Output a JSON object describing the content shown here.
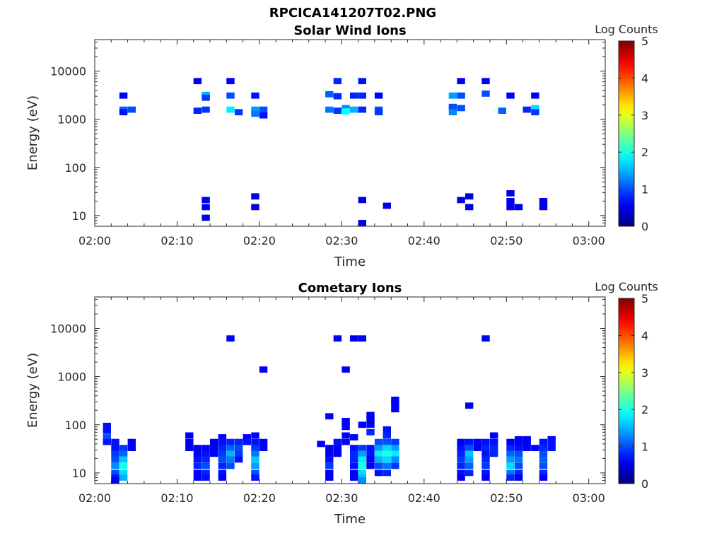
{
  "figure": {
    "title": "RPCICA141207T02.PNG"
  },
  "colorbar": {
    "label": "Log Counts",
    "range": [
      0,
      5
    ],
    "ticks": [
      "0",
      "1",
      "2",
      "3",
      "4",
      "5"
    ],
    "colormap": "jet"
  },
  "chart_data": [
    {
      "type": "heatmap",
      "title": "Solar Wind Ions",
      "xlabel": "Time",
      "ylabel": "Energy (eV)",
      "xlim_minutes": [
        0,
        62
      ],
      "ylim": [
        6,
        45000
      ],
      "y_scale": "log",
      "x_tick_labels": [
        "02:00",
        "02:10",
        "02:20",
        "02:30",
        "02:40",
        "02:50",
        "03:00"
      ],
      "y_tick_values": [
        10,
        100,
        1000,
        10000
      ],
      "y_tick_labels": [
        "10",
        "100",
        "1000",
        "10000"
      ],
      "grid": false,
      "cells": [
        [
          "02:03",
          3100,
          0.6
        ],
        [
          "02:03",
          1580,
          1.1
        ],
        [
          "02:03",
          1400,
          0.7
        ],
        [
          "02:04",
          1580,
          1.0
        ],
        [
          "02:12",
          6200,
          0.6
        ],
        [
          "02:12",
          1500,
          0.8
        ],
        [
          "02:13",
          3200,
          1.5
        ],
        [
          "02:13",
          2800,
          0.9
        ],
        [
          "02:13",
          1580,
          0.9
        ],
        [
          "02:13",
          21,
          0.5
        ],
        [
          "02:13",
          15,
          0.5
        ],
        [
          "02:13",
          9,
          0.5
        ],
        [
          "02:16",
          6200,
          0.6
        ],
        [
          "02:16",
          3100,
          1.0
        ],
        [
          "02:16",
          1580,
          1.8
        ],
        [
          "02:17",
          1400,
          0.9
        ],
        [
          "02:19",
          3100,
          0.7
        ],
        [
          "02:19",
          1580,
          1.4
        ],
        [
          "02:19",
          1300,
          1.2
        ],
        [
          "02:20",
          1580,
          1.0
        ],
        [
          "02:20",
          1200,
          0.7
        ],
        [
          "02:19",
          25,
          0.5
        ],
        [
          "02:19",
          15,
          0.5
        ],
        [
          "02:28",
          3300,
          1.1
        ],
        [
          "02:28",
          1580,
          1.2
        ],
        [
          "02:29",
          6200,
          0.8
        ],
        [
          "02:29",
          3000,
          0.8
        ],
        [
          "02:29",
          1500,
          0.9
        ],
        [
          "02:30",
          1700,
          1.3
        ],
        [
          "02:30",
          1450,
          1.9
        ],
        [
          "02:31",
          3100,
          0.8
        ],
        [
          "02:31",
          1580,
          1.5
        ],
        [
          "02:32",
          6200,
          0.7
        ],
        [
          "02:32",
          3100,
          0.8
        ],
        [
          "02:32",
          1580,
          0.8
        ],
        [
          "02:32",
          21,
          0.5
        ],
        [
          "02:32",
          7,
          0.5
        ],
        [
          "02:34",
          3100,
          0.6
        ],
        [
          "02:34",
          1580,
          1.0
        ],
        [
          "02:34",
          1400,
          0.9
        ],
        [
          "02:35",
          16,
          0.5
        ],
        [
          "02:43",
          3100,
          1.4
        ],
        [
          "02:43",
          1800,
          1.0
        ],
        [
          "02:43",
          1400,
          1.3
        ],
        [
          "02:44",
          6200,
          0.6
        ],
        [
          "02:44",
          3100,
          1.0
        ],
        [
          "02:44",
          1700,
          1.0
        ],
        [
          "02:44",
          21,
          0.5
        ],
        [
          "02:45",
          25,
          0.5
        ],
        [
          "02:45",
          15,
          0.5
        ],
        [
          "02:47",
          6200,
          0.6
        ],
        [
          "02:47",
          3400,
          1.0
        ],
        [
          "02:49",
          1500,
          1.1
        ],
        [
          "02:50",
          3100,
          0.6
        ],
        [
          "02:50",
          29,
          0.5
        ],
        [
          "02:50",
          20,
          0.5
        ],
        [
          "02:50",
          15,
          0.5
        ],
        [
          "02:51",
          15,
          0.5
        ],
        [
          "02:52",
          1580,
          0.8
        ],
        [
          "02:53",
          3100,
          0.6
        ],
        [
          "02:53",
          1700,
          1.7
        ],
        [
          "02:53",
          1400,
          0.9
        ],
        [
          "02:54",
          20,
          0.5
        ],
        [
          "02:54",
          15,
          0.5
        ]
      ]
    },
    {
      "type": "heatmap",
      "title": "Cometary Ions",
      "xlabel": "Time",
      "ylabel": "Energy (eV)",
      "xlim_minutes": [
        0,
        62
      ],
      "ylim": [
        6,
        45000
      ],
      "y_scale": "log",
      "x_tick_labels": [
        "02:00",
        "02:10",
        "02:20",
        "02:30",
        "02:40",
        "02:50",
        "03:00"
      ],
      "y_tick_values": [
        10,
        100,
        1000,
        10000
      ],
      "y_tick_labels": [
        "10",
        "100",
        "1000",
        "10000"
      ],
      "grid": false,
      "cells": [
        [
          "02:01",
          95,
          0.7
        ],
        [
          "02:01",
          75,
          0.7
        ],
        [
          "02:01",
          55,
          1.0
        ],
        [
          "02:01",
          44,
          0.7
        ],
        [
          "02:02",
          44,
          0.7
        ],
        [
          "02:02",
          33,
          0.7
        ],
        [
          "02:02",
          25,
          0.9
        ],
        [
          "02:02",
          19,
          1.0
        ],
        [
          "02:02",
          14,
          1.3
        ],
        [
          "02:02",
          10,
          1.0
        ],
        [
          "02:02",
          8,
          0.7
        ],
        [
          "02:02",
          7,
          0.5
        ],
        [
          "02:03",
          33,
          0.9
        ],
        [
          "02:03",
          25,
          1.1
        ],
        [
          "02:03",
          19,
          1.6
        ],
        [
          "02:03",
          14,
          2.0
        ],
        [
          "02:03",
          10,
          1.7
        ],
        [
          "02:03",
          8,
          1.5
        ],
        [
          "02:04",
          44,
          0.6
        ],
        [
          "02:04",
          33,
          0.6
        ],
        [
          "02:11",
          60,
          0.6
        ],
        [
          "02:11",
          44,
          0.6
        ],
        [
          "02:11",
          33,
          0.6
        ],
        [
          "02:12",
          33,
          0.6
        ],
        [
          "02:12",
          25,
          0.6
        ],
        [
          "02:12",
          19,
          0.7
        ],
        [
          "02:12",
          14,
          0.8
        ],
        [
          "02:12",
          10,
          0.6
        ],
        [
          "02:12",
          8,
          0.6
        ],
        [
          "02:13",
          33,
          0.6
        ],
        [
          "02:13",
          25,
          0.7
        ],
        [
          "02:13",
          19,
          0.8
        ],
        [
          "02:13",
          14,
          1.0
        ],
        [
          "02:13",
          10,
          0.8
        ],
        [
          "02:13",
          8,
          0.7
        ],
        [
          "02:14",
          44,
          0.5
        ],
        [
          "02:14",
          33,
          0.6
        ],
        [
          "02:14",
          25,
          0.6
        ],
        [
          "02:15",
          55,
          0.6
        ],
        [
          "02:15",
          44,
          0.7
        ],
        [
          "02:15",
          33,
          0.8
        ],
        [
          "02:15",
          25,
          0.9
        ],
        [
          "02:15",
          19,
          1.0
        ],
        [
          "02:15",
          14,
          0.8
        ],
        [
          "02:15",
          10,
          0.7
        ],
        [
          "02:15",
          8,
          0.6
        ],
        [
          "02:16",
          6200,
          0.6
        ],
        [
          "02:16",
          44,
          0.8
        ],
        [
          "02:16",
          33,
          1.1
        ],
        [
          "02:16",
          25,
          1.5
        ],
        [
          "02:16",
          19,
          1.2
        ],
        [
          "02:16",
          14,
          1.0
        ],
        [
          "02:17",
          44,
          0.8
        ],
        [
          "02:17",
          33,
          1.0
        ],
        [
          "02:17",
          25,
          0.9
        ],
        [
          "02:17",
          19,
          0.7
        ],
        [
          "02:18",
          55,
          0.6
        ],
        [
          "02:18",
          44,
          0.7
        ],
        [
          "02:19",
          60,
          0.6
        ],
        [
          "02:19",
          44,
          0.7
        ],
        [
          "02:19",
          33,
          0.9
        ],
        [
          "02:19",
          25,
          1.2
        ],
        [
          "02:19",
          19,
          1.6
        ],
        [
          "02:19",
          14,
          1.4
        ],
        [
          "02:19",
          10,
          1.0
        ],
        [
          "02:19",
          8,
          0.7
        ],
        [
          "02:20",
          1400,
          0.6
        ],
        [
          "02:20",
          44,
          0.6
        ],
        [
          "02:20",
          33,
          0.6
        ],
        [
          "02:27",
          40,
          0.6
        ],
        [
          "02:28",
          150,
          0.6
        ],
        [
          "02:28",
          33,
          0.6
        ],
        [
          "02:28",
          25,
          0.6
        ],
        [
          "02:28",
          19,
          0.7
        ],
        [
          "02:28",
          14,
          0.9
        ],
        [
          "02:28",
          10,
          0.6
        ],
        [
          "02:28",
          8,
          0.6
        ],
        [
          "02:29",
          6200,
          0.6
        ],
        [
          "02:29",
          44,
          0.7
        ],
        [
          "02:29",
          33,
          0.6
        ],
        [
          "02:29",
          25,
          0.6
        ],
        [
          "02:30",
          120,
          0.6
        ],
        [
          "02:30",
          90,
          0.6
        ],
        [
          "02:30",
          60,
          0.6
        ],
        [
          "02:30",
          44,
          0.6
        ],
        [
          "02:30",
          1400,
          0.6
        ],
        [
          "02:31",
          6200,
          0.6
        ],
        [
          "02:31",
          55,
          0.6
        ],
        [
          "02:31",
          33,
          0.7
        ],
        [
          "02:31",
          25,
          0.8
        ],
        [
          "02:31",
          19,
          0.8
        ],
        [
          "02:31",
          14,
          0.7
        ],
        [
          "02:31",
          10,
          0.6
        ],
        [
          "02:31",
          8,
          0.6
        ],
        [
          "02:32",
          6200,
          0.6
        ],
        [
          "02:32",
          100,
          0.6
        ],
        [
          "02:32",
          33,
          0.9
        ],
        [
          "02:32",
          25,
          1.4
        ],
        [
          "02:32",
          19,
          1.8
        ],
        [
          "02:32",
          14,
          2.0
        ],
        [
          "02:32",
          10,
          1.7
        ],
        [
          "02:32",
          8,
          1.6
        ],
        [
          "02:32",
          7,
          1.3
        ],
        [
          "02:33",
          160,
          0.6
        ],
        [
          "02:33",
          130,
          0.6
        ],
        [
          "02:33",
          100,
          0.6
        ],
        [
          "02:33",
          70,
          0.8
        ],
        [
          "02:33",
          33,
          0.7
        ],
        [
          "02:33",
          25,
          0.7
        ],
        [
          "02:33",
          19,
          0.6
        ],
        [
          "02:33",
          14,
          0.6
        ],
        [
          "02:34",
          44,
          1.0
        ],
        [
          "02:34",
          33,
          1.4
        ],
        [
          "02:34",
          25,
          1.8
        ],
        [
          "02:34",
          19,
          1.5
        ],
        [
          "02:34",
          14,
          1.0
        ],
        [
          "02:34",
          10,
          0.7
        ],
        [
          "02:35",
          80,
          0.7
        ],
        [
          "02:35",
          60,
          0.8
        ],
        [
          "02:35",
          44,
          1.0
        ],
        [
          "02:35",
          33,
          1.7
        ],
        [
          "02:35",
          25,
          2.0
        ],
        [
          "02:35",
          19,
          1.7
        ],
        [
          "02:35",
          14,
          1.2
        ],
        [
          "02:35",
          10,
          0.8
        ],
        [
          "02:36",
          330,
          0.6
        ],
        [
          "02:36",
          280,
          0.6
        ],
        [
          "02:36",
          210,
          0.6
        ],
        [
          "02:36",
          44,
          0.9
        ],
        [
          "02:36",
          33,
          1.4
        ],
        [
          "02:36",
          25,
          1.8
        ],
        [
          "02:36",
          19,
          1.3
        ],
        [
          "02:36",
          14,
          0.9
        ],
        [
          "02:44",
          44,
          0.6
        ],
        [
          "02:44",
          33,
          0.7
        ],
        [
          "02:44",
          25,
          0.8
        ],
        [
          "02:44",
          19,
          0.9
        ],
        [
          "02:44",
          14,
          0.8
        ],
        [
          "02:44",
          10,
          0.7
        ],
        [
          "02:44",
          8,
          0.6
        ],
        [
          "02:45",
          250,
          0.6
        ],
        [
          "02:45",
          44,
          0.7
        ],
        [
          "02:45",
          33,
          1.0
        ],
        [
          "02:45",
          25,
          1.6
        ],
        [
          "02:45",
          19,
          1.4
        ],
        [
          "02:45",
          14,
          1.1
        ],
        [
          "02:45",
          10,
          0.8
        ],
        [
          "02:46",
          44,
          0.6
        ],
        [
          "02:46",
          33,
          0.6
        ],
        [
          "02:47",
          6200,
          0.6
        ],
        [
          "02:47",
          44,
          0.7
        ],
        [
          "02:47",
          33,
          0.8
        ],
        [
          "02:47",
          25,
          0.7
        ],
        [
          "02:47",
          19,
          0.8
        ],
        [
          "02:47",
          14,
          0.9
        ],
        [
          "02:47",
          10,
          0.7
        ],
        [
          "02:47",
          8,
          0.6
        ],
        [
          "02:48",
          60,
          0.6
        ],
        [
          "02:48",
          44,
          0.7
        ],
        [
          "02:48",
          33,
          0.8
        ],
        [
          "02:48",
          25,
          0.8
        ],
        [
          "02:50",
          44,
          0.6
        ],
        [
          "02:50",
          33,
          0.8
        ],
        [
          "02:50",
          25,
          1.1
        ],
        [
          "02:50",
          19,
          1.4
        ],
        [
          "02:50",
          14,
          1.7
        ],
        [
          "02:50",
          10,
          1.2
        ],
        [
          "02:50",
          8,
          0.8
        ],
        [
          "02:51",
          50,
          0.6
        ],
        [
          "02:51",
          44,
          0.6
        ],
        [
          "02:51",
          33,
          0.7
        ],
        [
          "02:51",
          25,
          1.0
        ],
        [
          "02:51",
          19,
          1.2
        ],
        [
          "02:51",
          14,
          1.0
        ],
        [
          "02:51",
          10,
          0.8
        ],
        [
          "02:51",
          8,
          0.6
        ],
        [
          "02:52",
          50,
          0.6
        ],
        [
          "02:52",
          40,
          0.6
        ],
        [
          "02:52",
          33,
          0.6
        ],
        [
          "02:53",
          33,
          0.6
        ],
        [
          "02:54",
          44,
          0.7
        ],
        [
          "02:54",
          33,
          0.8
        ],
        [
          "02:54",
          25,
          1.0
        ],
        [
          "02:54",
          19,
          1.1
        ],
        [
          "02:54",
          14,
          1.0
        ],
        [
          "02:54",
          10,
          0.8
        ],
        [
          "02:54",
          8,
          0.6
        ],
        [
          "02:55",
          50,
          0.6
        ],
        [
          "02:55",
          44,
          0.7
        ],
        [
          "02:55",
          33,
          0.7
        ]
      ]
    }
  ]
}
